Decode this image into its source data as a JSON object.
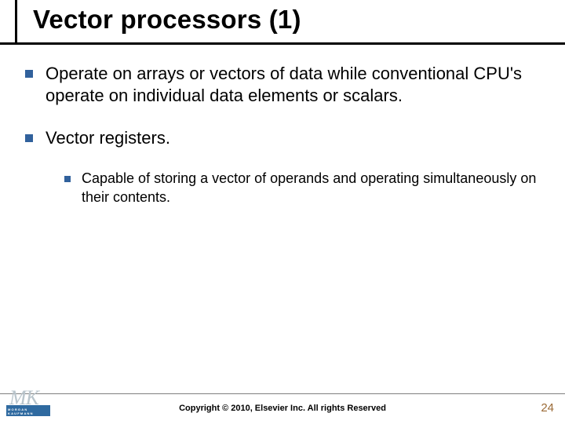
{
  "title": "Vector processors (1)",
  "bullets": [
    {
      "text": "Operate on arrays or vectors of data while conventional CPU's operate on individual data elements or scalars."
    },
    {
      "text": "Vector registers.",
      "children": [
        {
          "text": "Capable of storing a vector of operands and operating simultaneously on their contents."
        }
      ]
    }
  ],
  "copyright": "Copyright © 2010, Elsevier Inc. All rights Reserved",
  "page_number": "24",
  "logo": {
    "initials": "MK",
    "subscript": "MORGAN KAUFMANN"
  },
  "colors": {
    "bullet_square": "#31619c",
    "title_text": "#000000",
    "body_text": "#000000",
    "page_number": "#9b6a36",
    "footer_line": "#7f7f7f",
    "logo_tile": "#2f6aa0",
    "logo_initials": "#b9c5cc"
  },
  "fontsizes": {
    "title": 33,
    "level1": 22,
    "level2": 18,
    "copyright": 11,
    "page_number": 15
  }
}
